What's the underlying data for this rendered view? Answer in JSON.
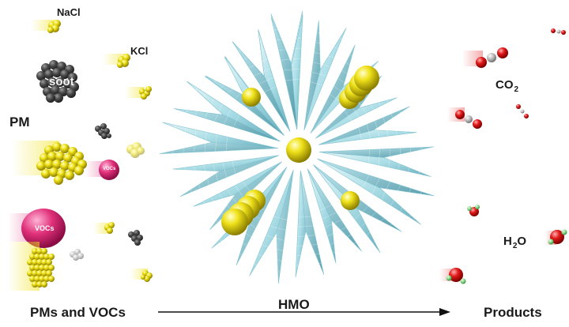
{
  "labels": {
    "nacl": "NaCl",
    "kcl": "KCl",
    "soot": "soot",
    "pm": "PM",
    "vocs_small": "VOCs",
    "vocs_big": "VOCs",
    "co2_main": "CO",
    "co2_sub": "2",
    "h2o_h": "H",
    "h2o_sub": "2",
    "h2o_o": "O"
  },
  "flow": {
    "input": "PMs and VOCs",
    "catalyst": "HMO",
    "output": "Products"
  },
  "colors": {
    "yellow": "#f0e21a",
    "yellow_dark": "#b8a800",
    "soot": "#4a4a4a",
    "voc_pink": "#e0307a",
    "crystal": "#a8dde6",
    "crystal_dark": "#6fb6c4",
    "oxygen_red": "#e01818",
    "carbon_grey": "#b0b0b0",
    "hydrogen_green": "#7fd07f"
  }
}
